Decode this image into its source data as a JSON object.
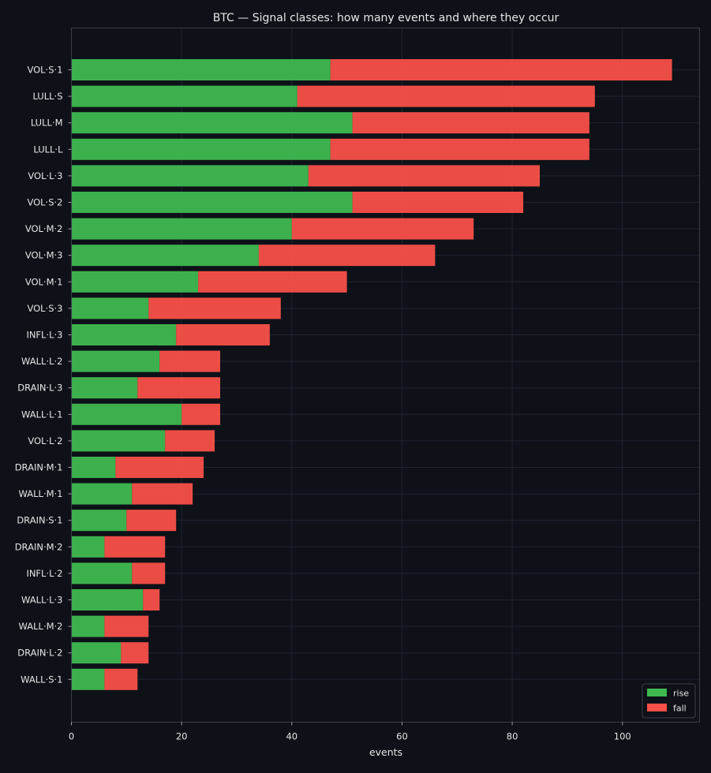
{
  "chart_data": {
    "type": "bar",
    "orientation": "horizontal",
    "stacked": true,
    "title": "BTC — Signal classes: how many events and where they occur",
    "xlabel": "events",
    "ylabel": "",
    "xlim": [
      0,
      114
    ],
    "xticks": [
      0,
      20,
      40,
      60,
      80,
      100
    ],
    "grid": true,
    "legend_position": "bottom-right",
    "categories": [
      "VOL·S·1",
      "LULL·S",
      "LULL·M",
      "LULL·L",
      "VOL·L·3",
      "VOL·S·2",
      "VOL·M·2",
      "VOL·M·3",
      "VOL·M·1",
      "VOL·S·3",
      "INFL·L·3",
      "WALL·L·2",
      "DRAIN·L·3",
      "WALL·L·1",
      "VOL·L·2",
      "DRAIN·M·1",
      "WALL·M·1",
      "DRAIN·S·1",
      "DRAIN·M·2",
      "INFL·L·2",
      "WALL·L·3",
      "WALL·M·2",
      "DRAIN·L·2",
      "WALL·S·1"
    ],
    "series": [
      {
        "name": "rise",
        "color": "#3fb950",
        "values": [
          47,
          41,
          51,
          47,
          43,
          51,
          40,
          34,
          23,
          14,
          19,
          16,
          12,
          20,
          17,
          8,
          11,
          10,
          6,
          11,
          13,
          6,
          9,
          6
        ]
      },
      {
        "name": "fall",
        "color": "#f85149",
        "values": [
          62,
          54,
          43,
          47,
          42,
          31,
          33,
          32,
          27,
          24,
          17,
          11,
          15,
          7,
          9,
          16,
          11,
          9,
          11,
          6,
          3,
          8,
          5,
          6
        ]
      }
    ],
    "colors": {
      "background": "#0e1118",
      "axes_border": "#3a3f4a",
      "grid": "#1f2430",
      "text": "#e6e6e6"
    }
  }
}
